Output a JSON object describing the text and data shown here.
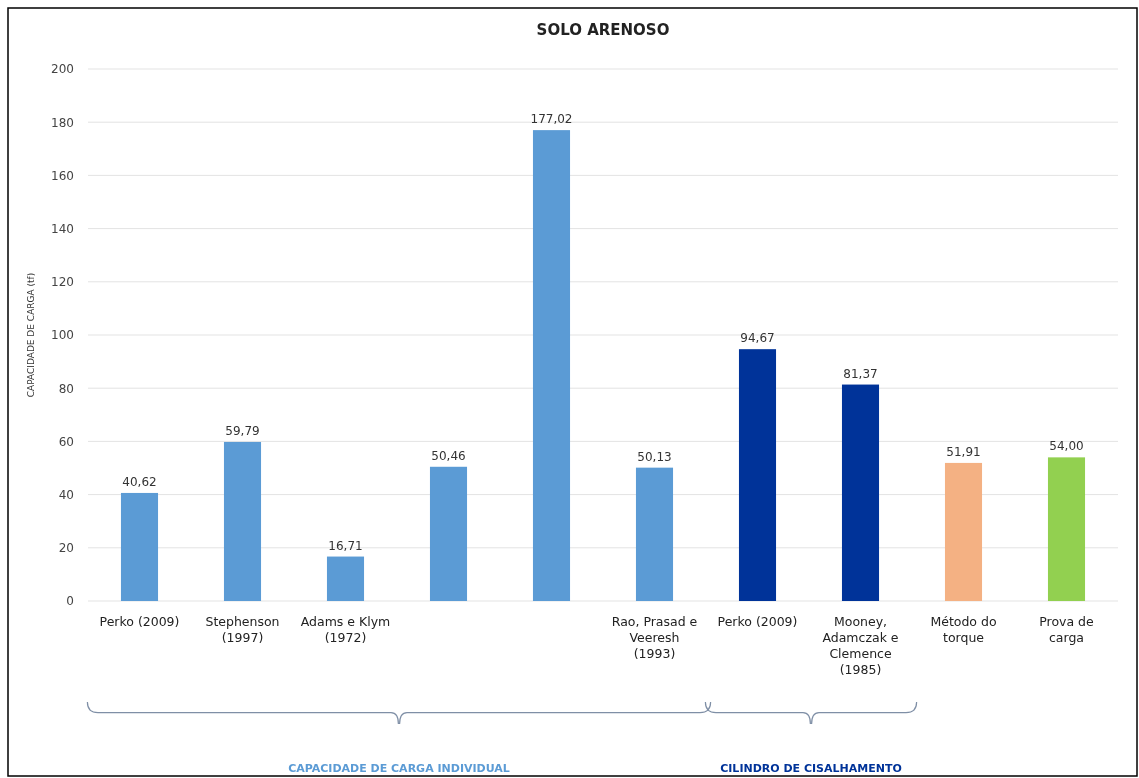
{
  "chart_data": {
    "type": "bar",
    "title": "SOLO ARENOSO",
    "ylabel": "CAPACIDADE DE CARGA (tf)",
    "categories": [
      "Perko (2009)",
      "Stephenson (1997)",
      "Adams e Klym (1972)",
      null,
      null,
      "Rao, Prasad e Veeresh (1993)",
      "Perko (2009)",
      "Mooney, Adamczak e Clemence (1985)",
      "Método do torque",
      "Prova de carga"
    ],
    "values": [
      40.62,
      59.79,
      16.71,
      50.46,
      177.02,
      50.13,
      94.67,
      81.37,
      51.91,
      54.0
    ],
    "colors": [
      "#5b9bd5",
      "#5b9bd5",
      "#5b9bd5",
      "#5b9bd5",
      "#5b9bd5",
      "#5b9bd5",
      "#003399",
      "#003399",
      "#f4b183",
      "#92d050"
    ],
    "value_labels": [
      "40,62",
      "59,79",
      "16,71",
      "50,46",
      "177,02",
      "50,13",
      "94,67",
      "81,37",
      "51,91",
      "54,00"
    ],
    "ylim": [
      0,
      200
    ],
    "yticks": [
      0,
      20,
      40,
      60,
      80,
      100,
      120,
      140,
      160,
      180,
      200
    ],
    "grid": "y",
    "annotations": [
      "CAPACIDADE DE CARGA INDIVIDUAL",
      "CILINDRO DE CISALHAMENTO"
    ]
  }
}
